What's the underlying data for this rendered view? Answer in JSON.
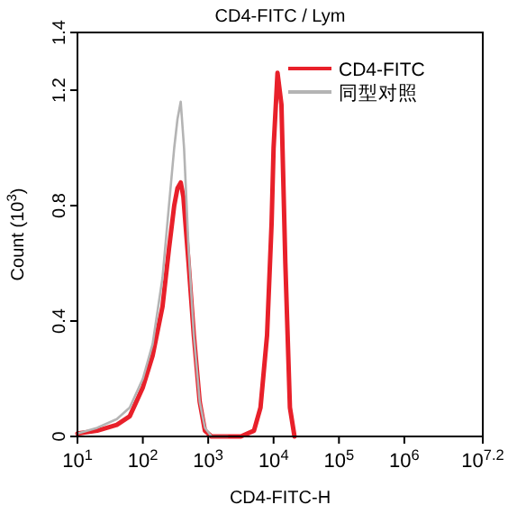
{
  "chart_data": {
    "type": "line",
    "title": "CD4-FITC / Lym",
    "xlabel": "CD4-FITC-H",
    "ylabel": "Count (10$^{3}$)",
    "log": "x",
    "grid": false,
    "legend": "top right",
    "marker": "none",
    "line_style": "solid",
    "xlim": [
      10,
      15848932
    ],
    "ylim": [
      0,
      1.4
    ],
    "xticks": [
      {
        "value": 10,
        "label": "10$^{1}$"
      },
      {
        "value": 100,
        "label": "10$^{2}$"
      },
      {
        "value": 1000,
        "label": "10$^{3}$"
      },
      {
        "value": 10000,
        "label": "10$^{4}$"
      },
      {
        "value": 100000,
        "label": "10$^{5}$"
      },
      {
        "value": 1000000,
        "label": "10$^{6}$"
      },
      {
        "value": 15848932,
        "label": "10$^{7.2}$"
      }
    ],
    "yticks": [
      0,
      0.4,
      0.8,
      1.2,
      1.4
    ],
    "series": [
      {
        "name": "CD4-FITC",
        "color": "#e8202a",
        "x": [
          10,
          20,
          40,
          63,
          100,
          141,
          200,
          251,
          302,
          339,
          380,
          417,
          501,
          603,
          741,
          891,
          1122,
          3162,
          5012,
          6310,
          7943,
          9333,
          10000,
          11482,
          13183,
          15136,
          17783,
          20893
        ],
        "values": [
          0.01,
          0.02,
          0.04,
          0.07,
          0.17,
          0.28,
          0.45,
          0.65,
          0.8,
          0.86,
          0.88,
          0.83,
          0.6,
          0.35,
          0.12,
          0.02,
          0.0,
          0.0,
          0.02,
          0.1,
          0.35,
          0.74,
          1.0,
          1.26,
          1.15,
          0.6,
          0.1,
          0.0
        ]
      },
      {
        "name": "同型对照",
        "color": "#b4b4b4",
        "x": [
          10,
          20,
          40,
          63,
          100,
          141,
          200,
          251,
          302,
          339,
          380,
          427,
          501,
          603,
          741,
          891,
          1122,
          1995
        ],
        "values": [
          0.01,
          0.03,
          0.06,
          0.1,
          0.2,
          0.32,
          0.55,
          0.8,
          1.0,
          1.1,
          1.16,
          1.0,
          0.65,
          0.35,
          0.12,
          0.03,
          0.0,
          0.0
        ]
      }
    ]
  }
}
